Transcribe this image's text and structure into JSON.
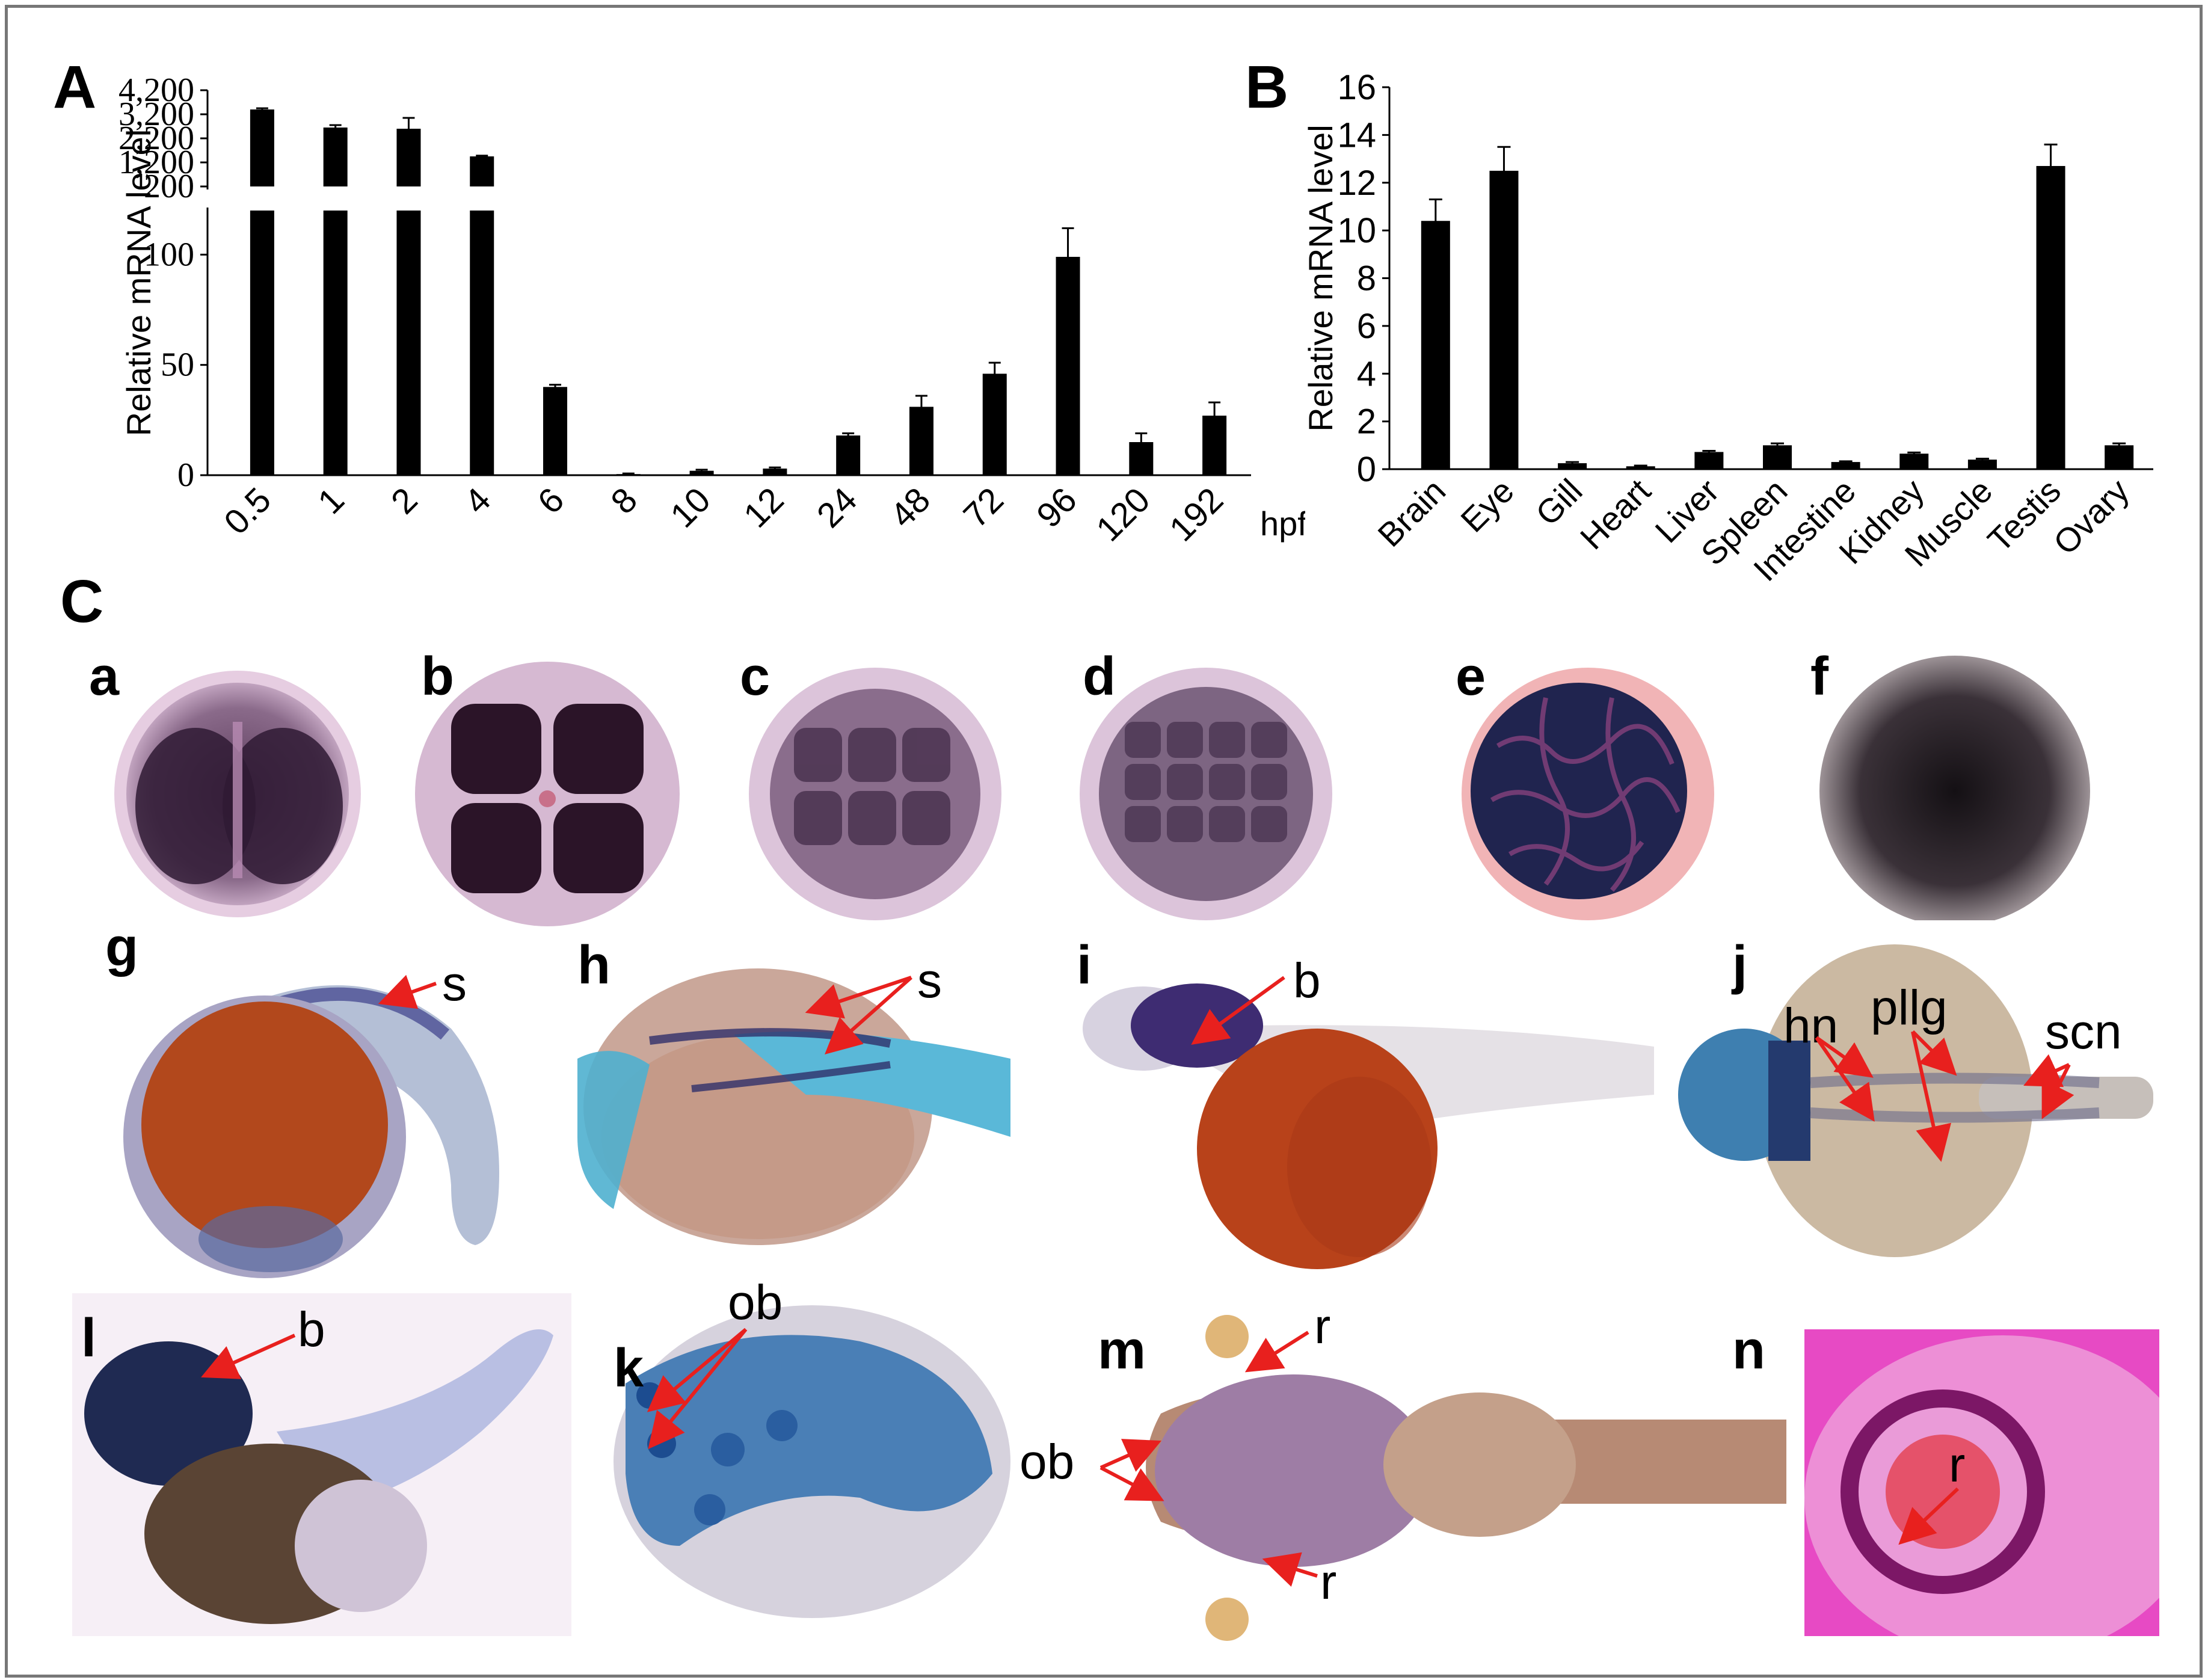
{
  "panels": {
    "A": {
      "label": "A"
    },
    "B": {
      "label": "B"
    },
    "C": {
      "label": "C"
    }
  },
  "chart_data": [
    {
      "type": "bar",
      "panel": "A",
      "title": "",
      "ylabel": "Relative mRNA level",
      "xlabel": "hpf",
      "categories": [
        "0.5",
        "1",
        "2",
        "4",
        "6",
        "8",
        "10",
        "12",
        "24",
        "48",
        "72",
        "96",
        "120",
        "192"
      ],
      "values": [
        3400,
        2650,
        2600,
        1450,
        40,
        0.5,
        2,
        3,
        18,
        31,
        46,
        99,
        15,
        27
      ],
      "errors": [
        50,
        100,
        450,
        30,
        1,
        0.3,
        0.5,
        0.5,
        1,
        5,
        5,
        13,
        4,
        6
      ],
      "y_axis_broken": true,
      "ylim_lower": [
        0,
        120
      ],
      "ylim_upper": [
        200,
        4200
      ],
      "lower_ticks": [
        "0",
        "50",
        "100"
      ],
      "upper_ticks": [
        "200",
        "1,200",
        "2,200",
        "3,200",
        "4,200"
      ]
    },
    {
      "type": "bar",
      "panel": "B",
      "title": "",
      "ylabel": "Relative mRNA level",
      "xlabel": "",
      "categories": [
        "Brain",
        "Eye",
        "Gill",
        "Heart",
        "Liver",
        "Spleen",
        "Intestine",
        "Kidney",
        "Muscle",
        "Testis",
        "Ovary"
      ],
      "values": [
        10.4,
        12.5,
        0.25,
        0.12,
        0.72,
        1.0,
        0.3,
        0.65,
        0.4,
        12.7,
        1.0
      ],
      "errors": [
        0.9,
        1.0,
        0.05,
        0.03,
        0.05,
        0.08,
        0.03,
        0.05,
        0.04,
        0.9,
        0.08
      ],
      "ylim": [
        0,
        16
      ],
      "yticks": [
        "0",
        "2",
        "4",
        "6",
        "8",
        "10",
        "12",
        "14",
        "16"
      ]
    }
  ],
  "images": {
    "a": {
      "letter": "a"
    },
    "b": {
      "letter": "b"
    },
    "c": {
      "letter": "c"
    },
    "d": {
      "letter": "d"
    },
    "e": {
      "letter": "e"
    },
    "f": {
      "letter": "f"
    },
    "g": {
      "letter": "g",
      "labels": [
        "s"
      ]
    },
    "h": {
      "letter": "h",
      "labels": [
        "s"
      ]
    },
    "i": {
      "letter": "i",
      "labels": [
        "b"
      ]
    },
    "j": {
      "letter": "j",
      "labels": [
        "hn",
        "pllg",
        "scn"
      ]
    },
    "l": {
      "letter": "l",
      "labels": [
        "b"
      ]
    },
    "k": {
      "letter": "k",
      "labels": [
        "ob"
      ]
    },
    "m": {
      "letter": "m",
      "labels": [
        "r",
        "ob",
        "r"
      ]
    },
    "n": {
      "letter": "n",
      "labels": [
        "r"
      ]
    }
  },
  "colors": {
    "bar": "#000000",
    "arrow": "#e8201e",
    "frame": "#777777",
    "stain_dark": "#2a1430",
    "yolk_brown": "#b2481c"
  }
}
